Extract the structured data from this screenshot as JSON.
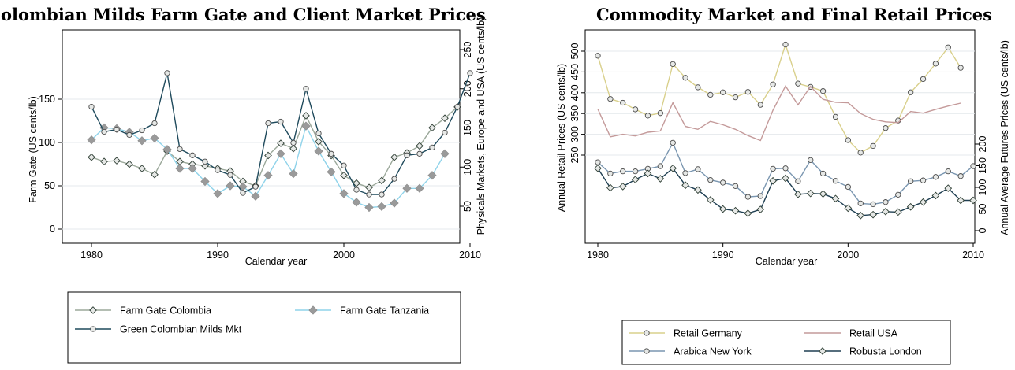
{
  "chart_data": [
    {
      "type": "line",
      "title": "Colombian Milds Farm Gate and Client Market Prices",
      "xlabel": "Calendar year",
      "ylabel_left": "Farm Gate (US cents/lb)",
      "ylabel_right": "Physicals Markets, Europe and USA (US cents/lb)",
      "xlim": [
        1980,
        2010
      ],
      "ylim_left": [
        0,
        240
      ],
      "ylim_right": [
        0,
        250
      ],
      "x_ticks": [
        1980,
        1990,
        2000,
        2010
      ],
      "y_ticks_left": [
        0,
        50,
        100,
        150
      ],
      "y_ticks_right": [
        50,
        100,
        150,
        200,
        250
      ],
      "grid": true,
      "legend_position": "bottom",
      "series": [
        {
          "name": "Farm Gate Colombia",
          "axis": "left",
          "marker": "diamond-hollow",
          "color": "#9ba89a",
          "x": [
            1980,
            1981,
            1982,
            1983,
            1984,
            1985,
            1986,
            1987,
            1988,
            1989,
            1990,
            1991,
            1992,
            1993,
            1994,
            1995,
            1996,
            1997,
            1998,
            1999,
            2000,
            2001,
            2002,
            2003,
            2004,
            2005,
            2006,
            2007,
            2008,
            2009
          ],
          "values": [
            83,
            78,
            79,
            75,
            70,
            63,
            90,
            78,
            75,
            73,
            70,
            67,
            55,
            50,
            85,
            99,
            93,
            131,
            101,
            85,
            62,
            53,
            48,
            56,
            83,
            88,
            96,
            117,
            128,
            141
          ]
        },
        {
          "name": "Farm Gate Tanzania",
          "axis": "left",
          "marker": "diamond-filled",
          "color": "#8fd3ea",
          "x": [
            1980,
            1981,
            1982,
            1983,
            1984,
            1985,
            1986,
            1987,
            1988,
            1989,
            1990,
            1991,
            1992,
            1993,
            1994,
            1995,
            1996,
            1997,
            1998,
            1999,
            2000,
            2001,
            2002,
            2003,
            2004,
            2005,
            2006,
            2007,
            2008
          ],
          "values": [
            103,
            117,
            116,
            112,
            102,
            105,
            92,
            70,
            70,
            55,
            41,
            50,
            49,
            38,
            62,
            87,
            64,
            119,
            90,
            66,
            41,
            31,
            25,
            26,
            30,
            47,
            47,
            62,
            87
          ]
        },
        {
          "name": "Green Colombian Milds Mkt",
          "axis": "right",
          "marker": "circle-hollow",
          "color": "#1f4a5c",
          "x": [
            1980,
            1981,
            1982,
            1983,
            1984,
            1985,
            1986,
            1987,
            1988,
            1989,
            1990,
            1991,
            1992,
            1993,
            1994,
            1995,
            1996,
            1997,
            1998,
            1999,
            2000,
            2001,
            2002,
            2003,
            2004,
            2005,
            2006,
            2007,
            2008,
            2009,
            2010
          ],
          "values": [
            177,
            145,
            148,
            141,
            147,
            156,
            220,
            123,
            115,
            107,
            96,
            90,
            67,
            75,
            156,
            158,
            131,
            200,
            143,
            117,
            102,
            71,
            65,
            65,
            85,
            115,
            117,
            125,
            144,
            177,
            220
          ]
        }
      ]
    },
    {
      "type": "line",
      "title": "Commodity Market and Final Retail Prices",
      "xlabel": "Calendar year",
      "ylabel_left": "Annual Retail Prices (US cents/lb)",
      "ylabel_right": "Annual Average Futures Prices (US cents/lb)",
      "xlim": [
        1980,
        2010
      ],
      "ylim_left": [
        250,
        500
      ],
      "ylim_right": [
        0,
        200
      ],
      "x_ticks": [
        1980,
        1990,
        2000,
        2010
      ],
      "y_ticks_left": [
        250,
        300,
        350,
        400,
        450,
        500
      ],
      "y_ticks_right": [
        0,
        50,
        100,
        150,
        200
      ],
      "grid": true,
      "legend_position": "bottom",
      "series": [
        {
          "name": "Retail Germany",
          "axis": "left",
          "marker": "circle-hollow",
          "color": "#d9d08c",
          "x": [
            1980,
            1981,
            1982,
            1983,
            1984,
            1985,
            1986,
            1987,
            1988,
            1989,
            1990,
            1991,
            1992,
            1993,
            1994,
            1995,
            1996,
            1997,
            1998,
            1999,
            2000,
            2001,
            2002,
            2003,
            2004,
            2005,
            2006,
            2007,
            2008,
            2009
          ],
          "values": [
            489,
            385,
            376,
            360,
            345,
            351,
            469,
            436,
            413,
            395,
            401,
            389,
            402,
            371,
            420,
            516,
            422,
            414,
            404,
            342,
            286,
            256,
            272,
            315,
            333,
            401,
            433,
            470,
            509,
            460
          ]
        },
        {
          "name": "Retail USA",
          "axis": "left",
          "marker": "none",
          "color": "#c49a9a",
          "x": [
            1980,
            1981,
            1982,
            1983,
            1984,
            1985,
            1986,
            1987,
            1988,
            1989,
            1990,
            1991,
            1992,
            1993,
            1994,
            1995,
            1996,
            1997,
            1998,
            1999,
            2000,
            2001,
            2002,
            2003,
            2004,
            2005,
            2006,
            2007,
            2008,
            2009
          ],
          "values": [
            361,
            294,
            300,
            296,
            305,
            308,
            376,
            319,
            312,
            331,
            323,
            312,
            297,
            285,
            358,
            416,
            371,
            415,
            384,
            377,
            376,
            350,
            336,
            330,
            328,
            355,
            351,
            360,
            368,
            375
          ]
        },
        {
          "name": "Arabica New York",
          "axis": "right",
          "marker": "circle-hollow",
          "color": "#7a96b0",
          "x": [
            1980,
            1981,
            1982,
            1983,
            1984,
            1985,
            1986,
            1987,
            1988,
            1989,
            1990,
            1991,
            1992,
            1993,
            1994,
            1995,
            1996,
            1997,
            1998,
            1999,
            2000,
            2001,
            2002,
            2003,
            2004,
            2005,
            2006,
            2007,
            2008,
            2009,
            2010
          ],
          "values": [
            158,
            132,
            137,
            137,
            143,
            149,
            203,
            133,
            142,
            117,
            111,
            103,
            78,
            80,
            143,
            144,
            114,
            163,
            132,
            115,
            101,
            63,
            61,
            66,
            83,
            114,
            116,
            124,
            137,
            126,
            149
          ]
        },
        {
          "name": "Robusta London",
          "axis": "right",
          "marker": "diamond-hollow",
          "color": "#1f3f52",
          "x": [
            1980,
            1981,
            1982,
            1983,
            1984,
            1985,
            1986,
            1987,
            1988,
            1989,
            1990,
            1991,
            1992,
            1993,
            1994,
            1995,
            1996,
            1997,
            1998,
            1999,
            2000,
            2001,
            2002,
            2003,
            2004,
            2005,
            2006,
            2007,
            2008,
            2009,
            2010
          ],
          "values": [
            144,
            99,
            102,
            118,
            132,
            120,
            144,
            105,
            94,
            71,
            50,
            46,
            40,
            49,
            115,
            121,
            84,
            86,
            85,
            74,
            52,
            35,
            37,
            44,
            43,
            55,
            66,
            81,
            98,
            70,
            70
          ]
        }
      ]
    }
  ]
}
